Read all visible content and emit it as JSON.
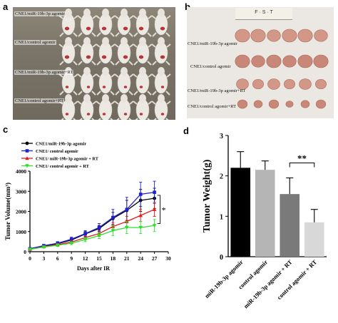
{
  "panels": {
    "a": {
      "letter": "a",
      "groups": [
        "CNE1/miR-19b-3p agomir",
        "CNE1/control agomir",
        "CNE1/miR-19b-3p agomir+RT",
        "CNE1/control agomir+RT"
      ]
    },
    "b": {
      "letter": "b",
      "ruler_text": "F · S · T",
      "groups": [
        "CNE1/miR-19b-3p agomir",
        "CNE1/control agomir",
        "CNE1/miR-19b-3p agomir+RT",
        "CNE1/control agomir+RT"
      ]
    },
    "c": {
      "letter": "c"
    },
    "d": {
      "letter": "d"
    }
  },
  "colors": {
    "agomir": "#000000",
    "control": "#1f1fd6",
    "agomir_rt": "#e01b1b",
    "control_rt": "#2ee02e",
    "bar1": "#000000",
    "bar2": "#b5b5b5",
    "bar3": "#7a7a7a",
    "bar4": "#d8d8d8"
  },
  "chart_data": [
    {
      "type": "line",
      "xlabel": "Days after IR",
      "ylabel": "Tumor Volume(mm³)",
      "x": [
        0,
        3,
        6,
        9,
        12,
        15,
        18,
        21,
        24,
        27
      ],
      "xticks": [
        0,
        3,
        6,
        9,
        12,
        15,
        18,
        21,
        24,
        27,
        30
      ],
      "yticks": [
        0,
        1000,
        2000,
        3000,
        4000
      ],
      "xlim": [
        0,
        30
      ],
      "ylim": [
        0,
        4000
      ],
      "legend_position": "top-left",
      "series": [
        {
          "name": "CNE1/miR-19b-3p agomir",
          "color": "#000000",
          "values": [
            150,
            280,
            400,
            580,
            880,
            1150,
            1650,
            2050,
            2550,
            2650
          ],
          "errors": [
            30,
            50,
            60,
            80,
            120,
            150,
            300,
            500,
            550,
            500
          ]
        },
        {
          "name": "CNE1/ control agomir",
          "color": "#1f1fd6",
          "values": [
            150,
            300,
            420,
            620,
            900,
            1200,
            1700,
            2100,
            2850,
            2950
          ],
          "errors": [
            30,
            60,
            80,
            100,
            150,
            200,
            400,
            600,
            600,
            550
          ]
        },
        {
          "name": "CNE1/ miR-19b-3p agomir + RT",
          "color": "#e01b1b",
          "values": [
            120,
            250,
            350,
            480,
            700,
            900,
            1250,
            1500,
            1800,
            2100
          ],
          "errors": [
            25,
            40,
            60,
            70,
            100,
            140,
            200,
            250,
            300,
            350
          ]
        },
        {
          "name": "CNE1/ control agomir + RT",
          "color": "#2ee02e",
          "values": [
            120,
            230,
            320,
            420,
            600,
            800,
            1050,
            1200,
            1200,
            1300
          ],
          "errors": [
            25,
            40,
            60,
            70,
            100,
            150,
            250,
            300,
            300,
            300
          ]
        }
      ],
      "annotation": "*"
    },
    {
      "type": "bar",
      "ylabel": "Tumor Weight(g)",
      "categories": [
        "miR-19b-3p agomir",
        "control agomir",
        "miR-19b-3p agomir + RT",
        "control agomir + RT"
      ],
      "values": [
        2.2,
        2.15,
        1.55,
        0.85
      ],
      "errors": [
        0.4,
        0.22,
        0.4,
        0.32
      ],
      "yticks": [
        0,
        1,
        2,
        3
      ],
      "ylim": [
        0,
        3
      ],
      "annotation": "**"
    }
  ]
}
